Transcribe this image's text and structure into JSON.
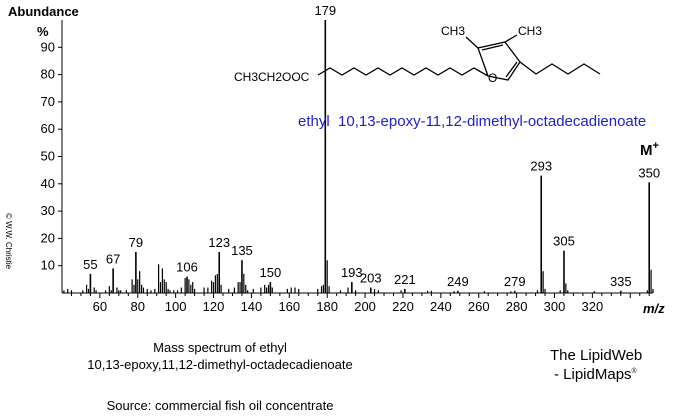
{
  "chart_data": {
    "type": "bar",
    "ylabel": "Abundance",
    "ylabel_unit": "%",
    "xlabel": "m/z",
    "xlim": [
      40,
      352
    ],
    "ylim": [
      0,
      100
    ],
    "y_ticks": [
      10,
      20,
      30,
      40,
      50,
      60,
      70,
      80,
      90
    ],
    "x_ticks": [
      60,
      80,
      100,
      120,
      140,
      160,
      180,
      200,
      220,
      240,
      260,
      280,
      300,
      320
    ],
    "grid": false,
    "peaks": [
      {
        "mz": 55,
        "abundance": 7,
        "label": "55"
      },
      {
        "mz": 67,
        "abundance": 9,
        "label": "67"
      },
      {
        "mz": 79,
        "abundance": 15,
        "label": "79"
      },
      {
        "mz": 106,
        "abundance": 6,
        "label": "106"
      },
      {
        "mz": 123,
        "abundance": 15,
        "label": "123"
      },
      {
        "mz": 135,
        "abundance": 12,
        "label": "135"
      },
      {
        "mz": 150,
        "abundance": 4,
        "label": "150"
      },
      {
        "mz": 179,
        "abundance": 100,
        "label": "179"
      },
      {
        "mz": 193,
        "abundance": 4,
        "label": "193"
      },
      {
        "mz": 203,
        "abundance": 2,
        "label": "203"
      },
      {
        "mz": 221,
        "abundance": 1.5,
        "label": "221"
      },
      {
        "mz": 249,
        "abundance": 0.8,
        "label": "249"
      },
      {
        "mz": 279,
        "abundance": 0.8,
        "label": "279"
      },
      {
        "mz": 293,
        "abundance": 43,
        "label": "293"
      },
      {
        "mz": 305,
        "abundance": 15.5,
        "label": "305"
      },
      {
        "mz": 335,
        "abundance": 0.8,
        "label": "335"
      },
      {
        "mz": 350,
        "abundance": 40.5,
        "label": "350"
      },
      {
        "mz": 41,
        "abundance": 1
      },
      {
        "mz": 43,
        "abundance": 1.5
      },
      {
        "mz": 45,
        "abundance": 1
      },
      {
        "mz": 51,
        "abundance": 1
      },
      {
        "mz": 53,
        "abundance": 3
      },
      {
        "mz": 54,
        "abundance": 1.5
      },
      {
        "mz": 57,
        "abundance": 2
      },
      {
        "mz": 58,
        "abundance": 1
      },
      {
        "mz": 63,
        "abundance": 1
      },
      {
        "mz": 65,
        "abundance": 2.5
      },
      {
        "mz": 66,
        "abundance": 1
      },
      {
        "mz": 69,
        "abundance": 2
      },
      {
        "mz": 70,
        "abundance": 1
      },
      {
        "mz": 71,
        "abundance": 1
      },
      {
        "mz": 74,
        "abundance": 1
      },
      {
        "mz": 77,
        "abundance": 5
      },
      {
        "mz": 78,
        "abundance": 3
      },
      {
        "mz": 80,
        "abundance": 5
      },
      {
        "mz": 81,
        "abundance": 8
      },
      {
        "mz": 82,
        "abundance": 3
      },
      {
        "mz": 83,
        "abundance": 2
      },
      {
        "mz": 85,
        "abundance": 1.5
      },
      {
        "mz": 87,
        "abundance": 1
      },
      {
        "mz": 89,
        "abundance": 1.5
      },
      {
        "mz": 91,
        "abundance": 10.5
      },
      {
        "mz": 92,
        "abundance": 4
      },
      {
        "mz": 93,
        "abundance": 9
      },
      {
        "mz": 94,
        "abundance": 5
      },
      {
        "mz": 95,
        "abundance": 4
      },
      {
        "mz": 96,
        "abundance": 1.5
      },
      {
        "mz": 97,
        "abundance": 1
      },
      {
        "mz": 99,
        "abundance": 1
      },
      {
        "mz": 101,
        "abundance": 1
      },
      {
        "mz": 103,
        "abundance": 2
      },
      {
        "mz": 105,
        "abundance": 5.5
      },
      {
        "mz": 107,
        "abundance": 5
      },
      {
        "mz": 108,
        "abundance": 3
      },
      {
        "mz": 109,
        "abundance": 4
      },
      {
        "mz": 110,
        "abundance": 1.5
      },
      {
        "mz": 115,
        "abundance": 2
      },
      {
        "mz": 117,
        "abundance": 2
      },
      {
        "mz": 119,
        "abundance": 4.5
      },
      {
        "mz": 120,
        "abundance": 4
      },
      {
        "mz": 121,
        "abundance": 6.5
      },
      {
        "mz": 122,
        "abundance": 7
      },
      {
        "mz": 124,
        "abundance": 3
      },
      {
        "mz": 128,
        "abundance": 1.5
      },
      {
        "mz": 131,
        "abundance": 2
      },
      {
        "mz": 133,
        "abundance": 4
      },
      {
        "mz": 134,
        "abundance": 4
      },
      {
        "mz": 136,
        "abundance": 7
      },
      {
        "mz": 137,
        "abundance": 3
      },
      {
        "mz": 138,
        "abundance": 1
      },
      {
        "mz": 141,
        "abundance": 1.5
      },
      {
        "mz": 145,
        "abundance": 2
      },
      {
        "mz": 147,
        "abundance": 3
      },
      {
        "mz": 148,
        "abundance": 2
      },
      {
        "mz": 149,
        "abundance": 3
      },
      {
        "mz": 151,
        "abundance": 2
      },
      {
        "mz": 159,
        "abundance": 1.5
      },
      {
        "mz": 161,
        "abundance": 2
      },
      {
        "mz": 163,
        "abundance": 2
      },
      {
        "mz": 165,
        "abundance": 1.5
      },
      {
        "mz": 175,
        "abundance": 1.5
      },
      {
        "mz": 177,
        "abundance": 2.5
      },
      {
        "mz": 178,
        "abundance": 3
      },
      {
        "mz": 180,
        "abundance": 12
      },
      {
        "mz": 181,
        "abundance": 2.5
      },
      {
        "mz": 187,
        "abundance": 1
      },
      {
        "mz": 191,
        "abundance": 2
      },
      {
        "mz": 195,
        "abundance": 1
      },
      {
        "mz": 205,
        "abundance": 1.5
      },
      {
        "mz": 207,
        "abundance": 1
      },
      {
        "mz": 219,
        "abundance": 1
      },
      {
        "mz": 233,
        "abundance": 0.8
      },
      {
        "mz": 235,
        "abundance": 0.8
      },
      {
        "mz": 247,
        "abundance": 0.7
      },
      {
        "mz": 263,
        "abundance": 0.7
      },
      {
        "mz": 277,
        "abundance": 0.6
      },
      {
        "mz": 291,
        "abundance": 1
      },
      {
        "mz": 294,
        "abundance": 8
      },
      {
        "mz": 295,
        "abundance": 1.5
      },
      {
        "mz": 303,
        "abundance": 1
      },
      {
        "mz": 306,
        "abundance": 3.5
      },
      {
        "mz": 307,
        "abundance": 1
      },
      {
        "mz": 321,
        "abundance": 0.7
      },
      {
        "mz": 349,
        "abundance": 1
      },
      {
        "mz": 351,
        "abundance": 8.5
      },
      {
        "mz": 352,
        "abundance": 1.5
      }
    ],
    "molecular_ion_label": "M",
    "molecular_ion_sup": "+",
    "compound_name": "ethyl  10,13-epoxy-11,12-dimethyl-octadecadienoate",
    "structure_labels": {
      "ester_group": "CH3CH2OOC",
      "methyl_left": "CH3",
      "methyl_right": "CH3",
      "ring_oxygen": "O"
    },
    "colors": {
      "compound_name": "#1f1fcc",
      "peaks": "#000000"
    }
  },
  "side_credit": "© W.W. Christie",
  "caption": {
    "line1": "Mass spectrum of ethyl",
    "line2": "10,13-epoxy,11,12-dimethyl-octadecadienoate",
    "source": "Source: commercial fish oil concentrate"
  },
  "brand": {
    "line1": "The LipidWeb",
    "line2": "- LipidMaps",
    "mark": "®"
  }
}
